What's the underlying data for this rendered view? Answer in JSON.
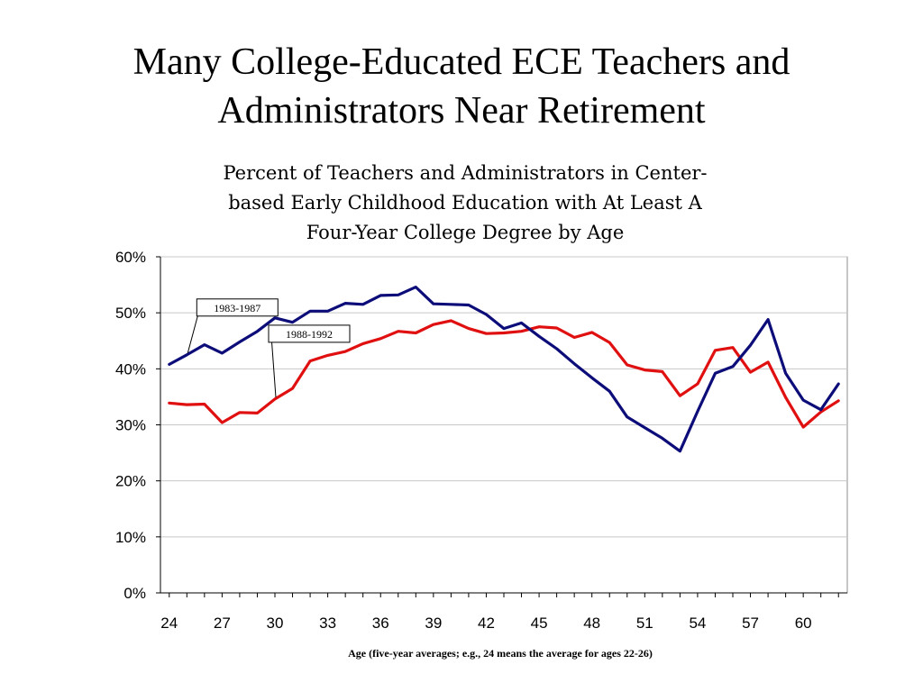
{
  "slide": {
    "title_lines": [
      "Many College-Educated ECE Teachers and",
      "Administrators Near Retirement"
    ]
  },
  "chart_data": {
    "type": "line",
    "title_lines": [
      "Percent of Teachers and Administrators in Center-",
      "based Early Childhood Education with At Least A",
      "Four-Year College Degree by Age"
    ],
    "xlabel": "Age (five-year averages; e.g., 24 means the average for ages 22-26)",
    "ylabel": "",
    "x": [
      24,
      25,
      26,
      27,
      28,
      29,
      30,
      31,
      32,
      33,
      34,
      35,
      36,
      37,
      38,
      39,
      40,
      41,
      42,
      43,
      44,
      45,
      46,
      47,
      48,
      49,
      50,
      51,
      52,
      53,
      54,
      55,
      56,
      57,
      58,
      59,
      60,
      61,
      62
    ],
    "xlim": [
      23.5,
      62.5
    ],
    "xticks": [
      24,
      27,
      30,
      33,
      36,
      39,
      42,
      45,
      48,
      51,
      54,
      57,
      60
    ],
    "ylim": [
      0,
      60
    ],
    "yticks": [
      0,
      10,
      20,
      30,
      40,
      50,
      60
    ],
    "ytick_labels": [
      "0%",
      "10%",
      "20%",
      "30%",
      "40%",
      "50%",
      "60%"
    ],
    "grid": true,
    "legend": "none",
    "series": [
      {
        "name": "1983-1987",
        "color": "#0d0d7a",
        "values": [
          40.8,
          42.5,
          44.3,
          42.8,
          44.8,
          46.7,
          49.1,
          48.3,
          50.3,
          50.3,
          51.7,
          51.5,
          53.1,
          53.2,
          54.6,
          51.6,
          51.5,
          51.4,
          49.7,
          47.2,
          48.2,
          45.8,
          43.6,
          40.9,
          38.4,
          36.0,
          31.4,
          29.5,
          27.6,
          25.3,
          32.4,
          39.2,
          40.4,
          44.2,
          48.8,
          39.2,
          34.4,
          32.7,
          37.3
        ]
      },
      {
        "name": "1988-1992",
        "color": "#e01010",
        "values": [
          33.9,
          33.6,
          33.7,
          30.4,
          32.2,
          32.1,
          34.6,
          36.5,
          41.4,
          42.4,
          43.1,
          44.5,
          45.4,
          46.7,
          46.4,
          47.9,
          48.6,
          47.2,
          46.3,
          46.4,
          46.7,
          47.5,
          47.3,
          45.6,
          46.5,
          44.7,
          40.7,
          39.8,
          39.5,
          35.2,
          37.3,
          43.3,
          43.8,
          39.4,
          41.2,
          34.9,
          29.6,
          32.3,
          34.3
        ]
      }
    ],
    "annotations": [
      {
        "text": "1983-1987",
        "series_index": 0,
        "points_to_x": 25
      },
      {
        "text": "1988-1992",
        "series_index": 1,
        "points_to_x": 30
      }
    ]
  }
}
